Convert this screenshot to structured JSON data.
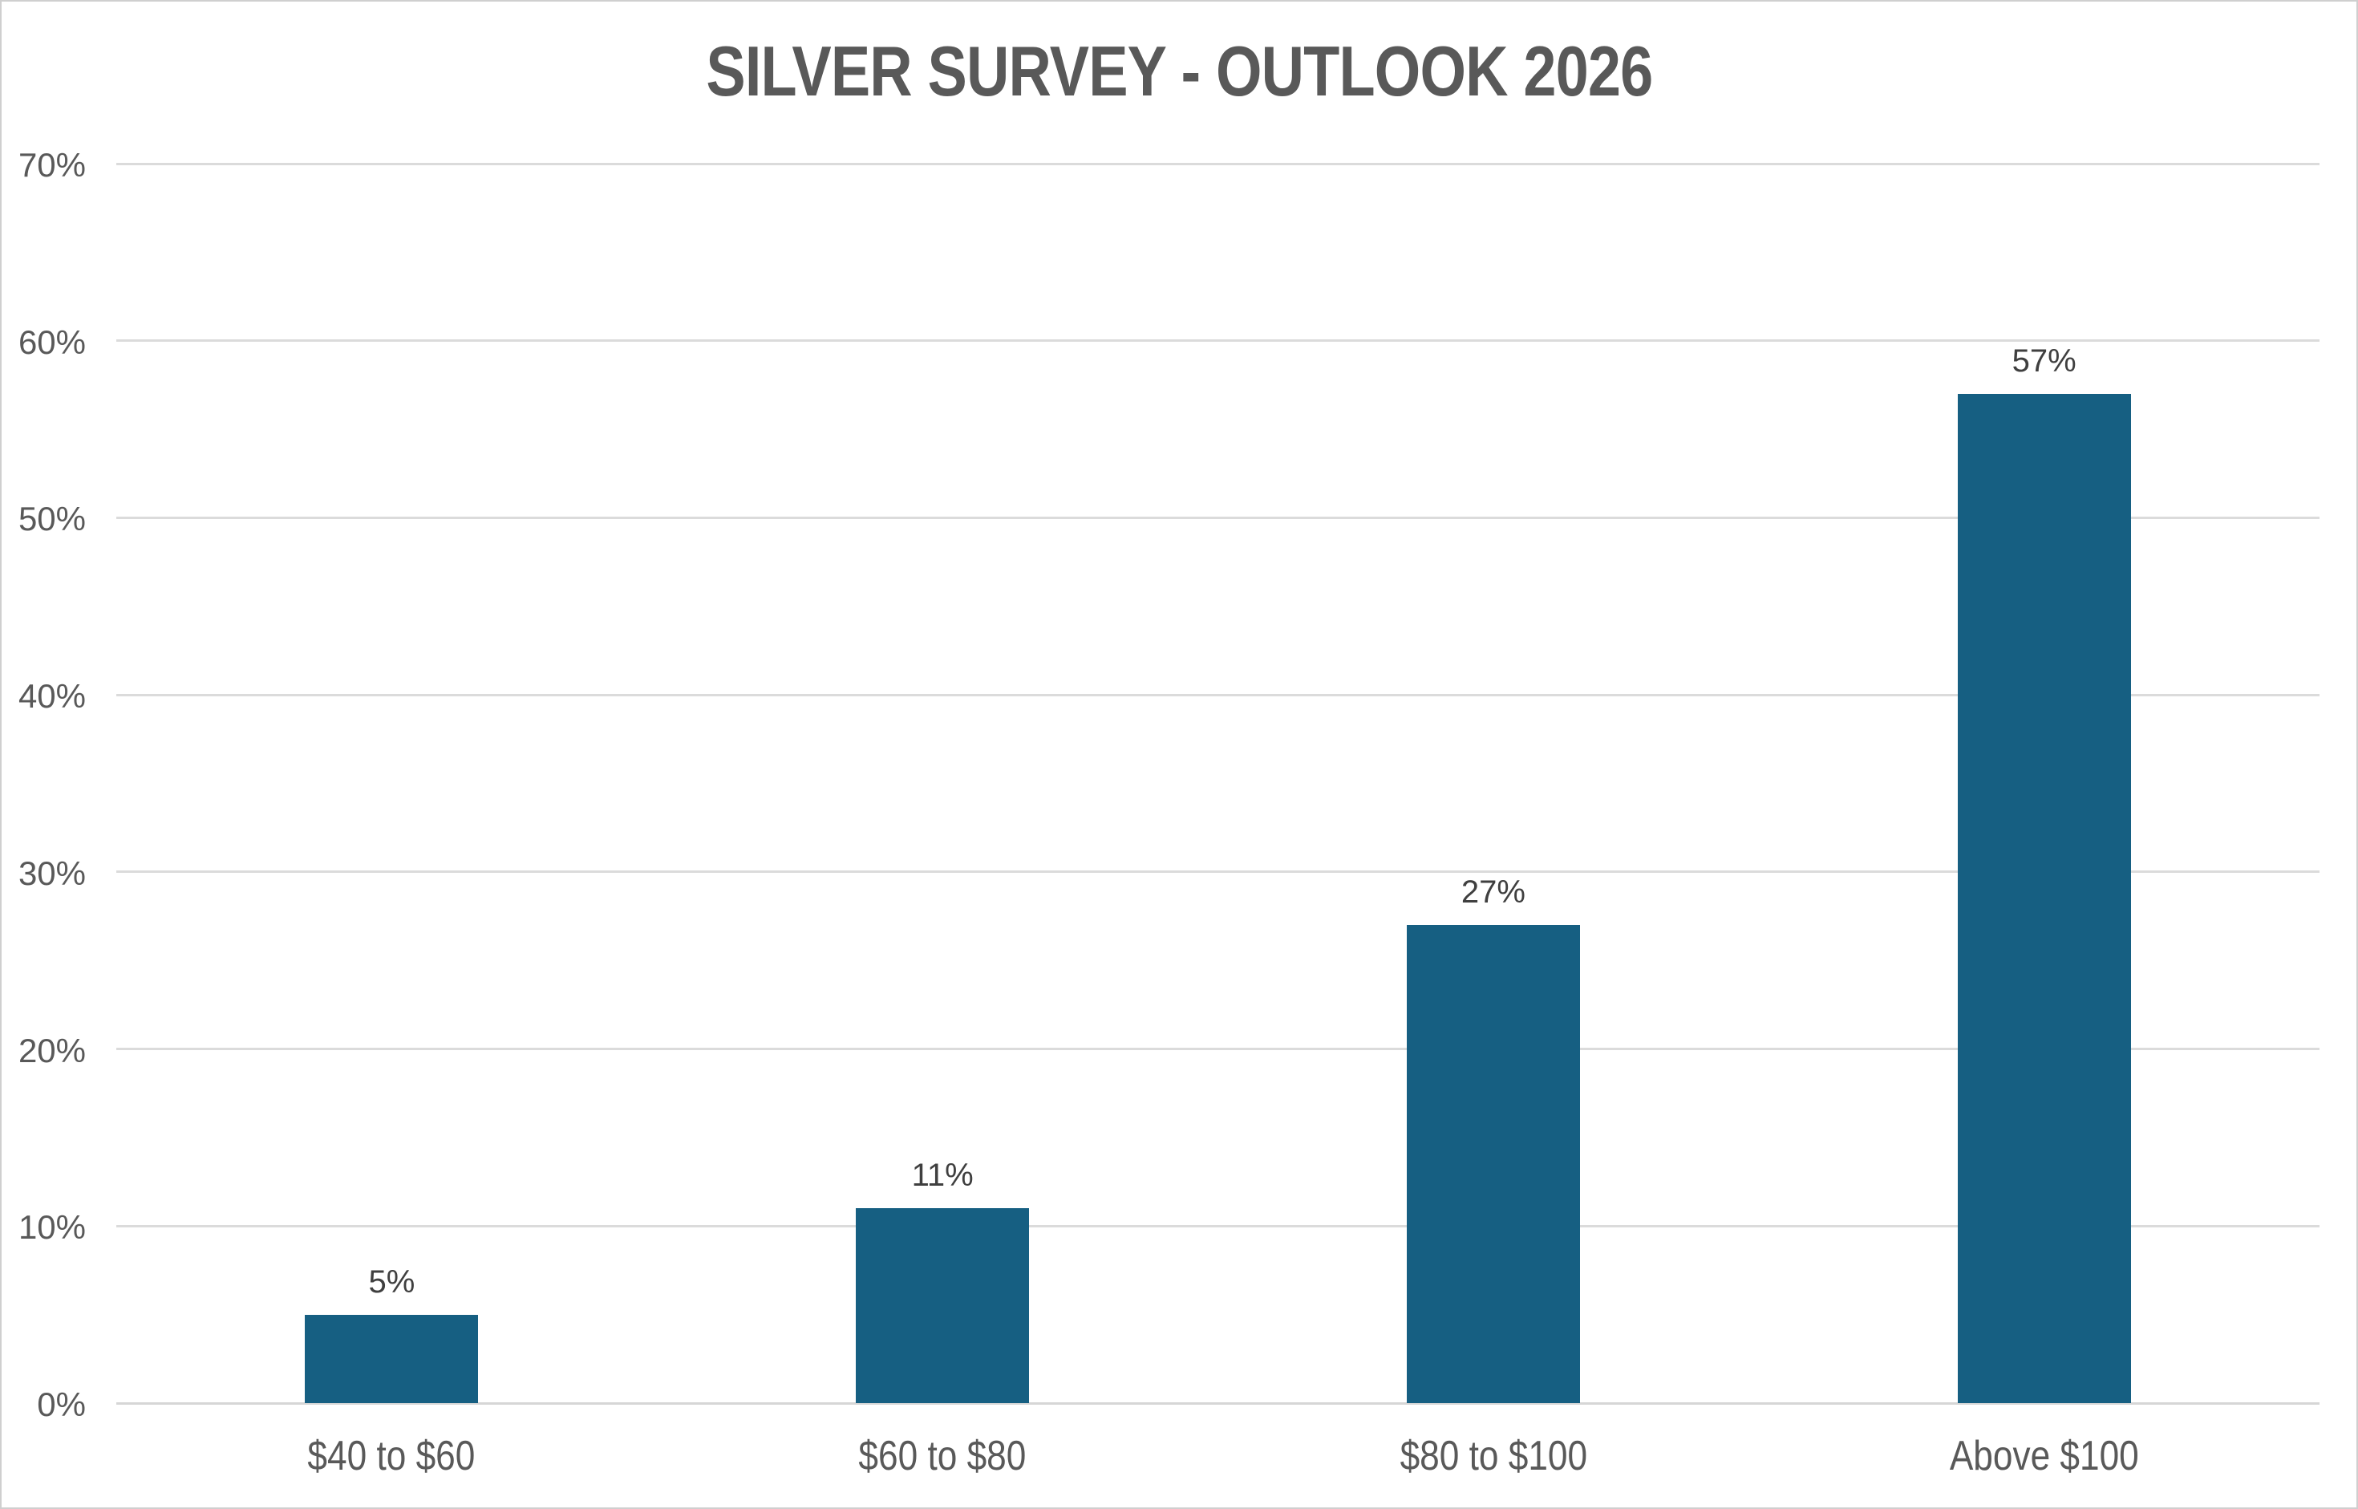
{
  "title": "SILVER SURVEY - OUTLOOK 2026",
  "chart_data": {
    "type": "bar",
    "title": "SILVER SURVEY - OUTLOOK 2026",
    "categories": [
      "$40 to $60",
      "$60 to $80",
      "$80 to $100",
      "Above $100"
    ],
    "values": [
      5,
      11,
      27,
      57
    ],
    "data_labels": [
      "5%",
      "11%",
      "27%",
      "57%"
    ],
    "xlabel": "",
    "ylabel": "",
    "ylim": [
      0,
      70
    ],
    "y_tick_values": [
      0,
      10,
      20,
      30,
      40,
      50,
      60,
      70
    ],
    "y_tick_labels": [
      "0%",
      "10%",
      "20%",
      "30%",
      "40%",
      "50%",
      "60%",
      "70%"
    ],
    "grid": "horizontal",
    "legend": "none"
  },
  "colors": {
    "bar": "#165F82",
    "title_text": "#595959",
    "axis_text": "#595959",
    "value_label_text": "#3F3F3F",
    "gridline": "#DBDBDB",
    "baseline": "#D6D6D6",
    "background": "#FFFFFF",
    "border": "#CFCFCF"
  }
}
